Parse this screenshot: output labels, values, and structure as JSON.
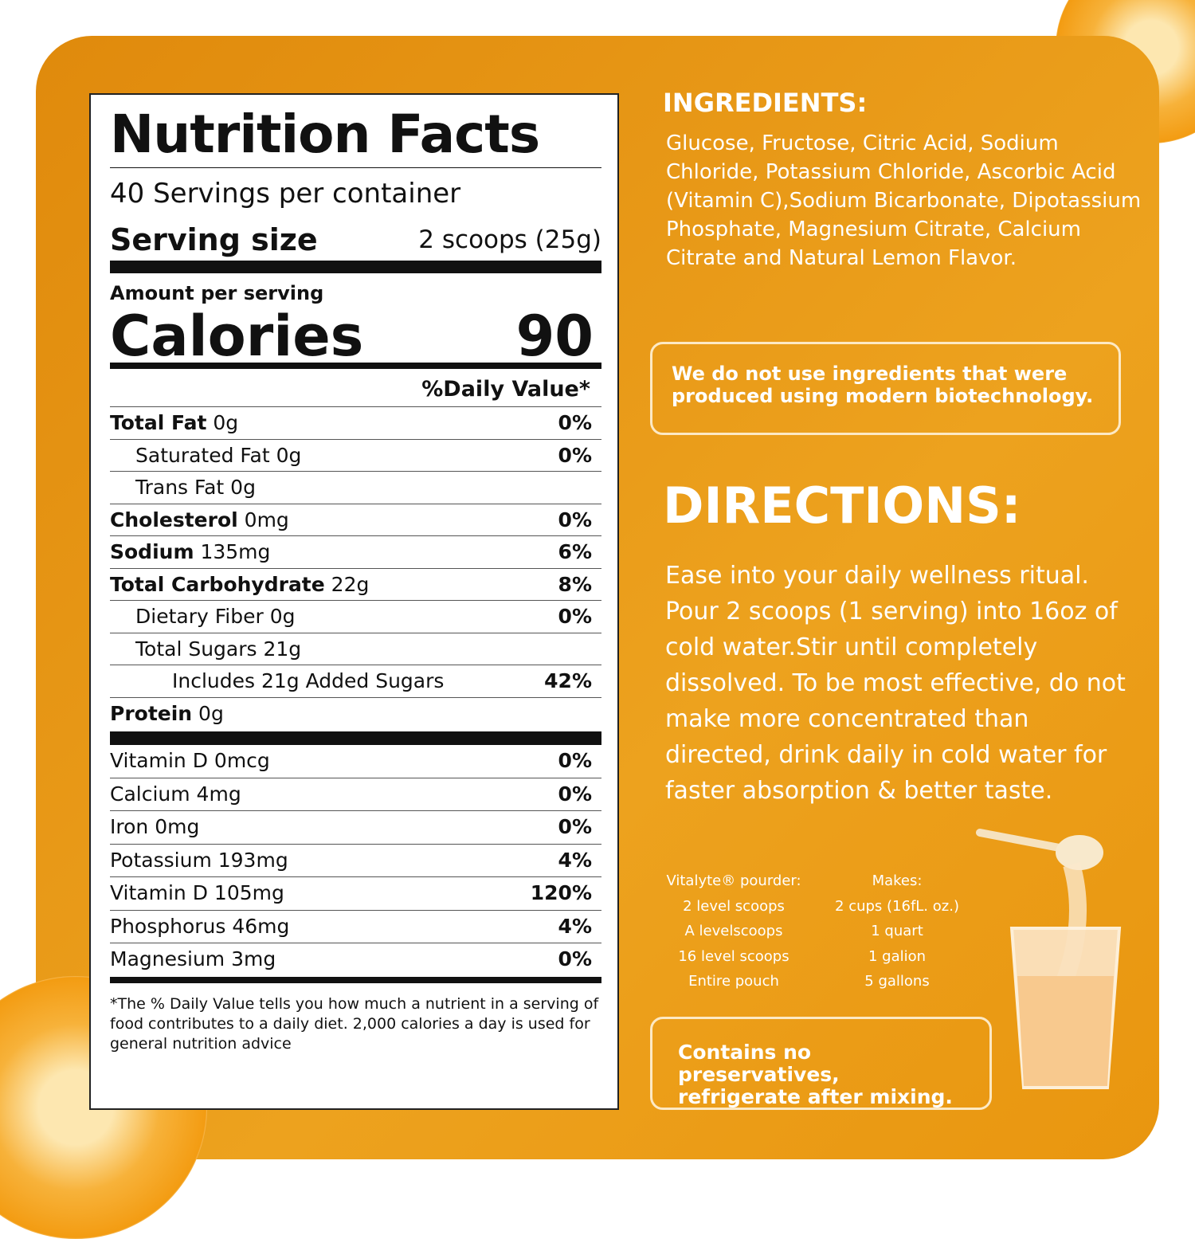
{
  "label": {
    "title": "Nutrition Facts",
    "servings": "40 Servings per container",
    "serving_size_label": "Serving size",
    "serving_size_value": "2 scoops (25g)",
    "amount_per_serving": "Amount per serving",
    "calories_label": "Calories",
    "calories_value": "90",
    "dv_header": "%Daily Value*",
    "rows": [
      {
        "bold": "Total Fat",
        "text": " 0g",
        "pct": "0%",
        "indent": 0
      },
      {
        "bold": "",
        "text": "Saturated Fat 0g",
        "pct": "0%",
        "indent": 1
      },
      {
        "bold": "",
        "text": "Trans Fat 0g",
        "pct": "",
        "indent": 1
      },
      {
        "bold": "Cholesterol",
        "text": " 0mg",
        "pct": "0%",
        "indent": 0
      },
      {
        "bold": "Sodium",
        "text": " 135mg",
        "pct": "6%",
        "indent": 0
      },
      {
        "bold": "Total Carbohydrate",
        "text": " 22g",
        "pct": "8%",
        "indent": 0
      },
      {
        "bold": "",
        "text": "Dietary Fiber 0g",
        "pct": "0%",
        "indent": 1
      },
      {
        "bold": "",
        "text": "Total Sugars 21g",
        "pct": "",
        "indent": 1
      },
      {
        "bold": "",
        "text": "Includes 21g Added Sugars",
        "pct": "42%",
        "indent": 2
      },
      {
        "bold": "Protein",
        "text": " 0g",
        "pct": "",
        "indent": 0
      }
    ],
    "vitamins": [
      {
        "text": "Vitamin D 0mcg",
        "pct": "0%"
      },
      {
        "text": "Calcium 4mg",
        "pct": "0%"
      },
      {
        "text": "Iron 0mg",
        "pct": "0%"
      },
      {
        "text": "Potassium 193mg",
        "pct": "4%"
      },
      {
        "text": "Vitamin D 105mg",
        "pct": "120%"
      },
      {
        "text": "Phosphorus 46mg",
        "pct": "4%"
      },
      {
        "text": "Magnesium 3mg",
        "pct": "0%"
      }
    ],
    "footnote": "*The % Daily Value tells you how much a nutrient in a serving of food contributes to a daily diet. 2,000 calories a day is used for general nutrition advice"
  },
  "ingredients": {
    "heading": "INGREDIENTS:",
    "text": "Glucose, Fructose, Citric Acid, Sodium Chloride, Potassium Chloride, Ascorbic Acid (Vitamin C),Sodium Bicarbonate, Dipotassium Phosphate, Magnesium Citrate, Calcium Citrate and Natural Lemon Flavor."
  },
  "biotech_note": "We do not use ingredients that were produced using modern biotechnology.",
  "directions": {
    "heading": "DIRECTIONS:",
    "text": "Ease into your daily wellness ritual. Pour 2 scoops (1 serving) into 16oz of cold water.Stir until completely dissolved. To be most effective, do not make more concentrated than directed, drink daily in cold water for faster absorption & better taste."
  },
  "mixing": {
    "col1_header": "Vitalyte® pourder:",
    "col2_header": "Makes:",
    "rows": [
      [
        "2 level scoops",
        "2 cups (16fL. oz.)"
      ],
      [
        "A levelscoops",
        "1 quart"
      ],
      [
        "16 level scoops",
        "1 galion"
      ],
      [
        "Entire pouch",
        "5 gallons"
      ]
    ]
  },
  "storage_note": "Contains no preservatives, refrigerate after mixing."
}
